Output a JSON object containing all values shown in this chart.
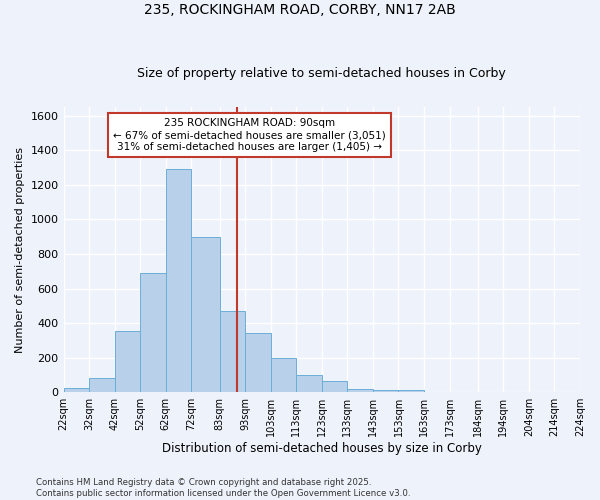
{
  "title1": "235, ROCKINGHAM ROAD, CORBY, NN17 2AB",
  "title2": "Size of property relative to semi-detached houses in Corby",
  "xlabel": "Distribution of semi-detached houses by size in Corby",
  "ylabel": "Number of semi-detached properties",
  "bin_labels": [
    "22sqm",
    "32sqm",
    "42sqm",
    "52sqm",
    "62sqm",
    "72sqm",
    "83sqm",
    "93sqm",
    "103sqm",
    "113sqm",
    "123sqm",
    "133sqm",
    "143sqm",
    "153sqm",
    "163sqm",
    "173sqm",
    "184sqm",
    "194sqm",
    "204sqm",
    "214sqm",
    "224sqm"
  ],
  "bin_edges": [
    22,
    32,
    42,
    52,
    62,
    72,
    83,
    93,
    103,
    113,
    123,
    133,
    143,
    153,
    163,
    173,
    184,
    194,
    204,
    214,
    224
  ],
  "hist_counts": [
    25,
    80,
    355,
    690,
    1290,
    900,
    470,
    345,
    200,
    100,
    65,
    20,
    15,
    10,
    0,
    0,
    0,
    0,
    0,
    0
  ],
  "bar_color": "#b8d0ea",
  "bar_edge_color": "#6aaed6",
  "vline_x": 90,
  "vline_color": "#c0392b",
  "annotation_text": "235 ROCKINGHAM ROAD: 90sqm\n← 67% of semi-detached houses are smaller (3,051)\n31% of semi-detached houses are larger (1,405) →",
  "annotation_box_color": "#ffffff",
  "annotation_border_color": "#c0392b",
  "ylim": [
    0,
    1650
  ],
  "yticks": [
    0,
    200,
    400,
    600,
    800,
    1000,
    1200,
    1400,
    1600
  ],
  "footer1": "Contains HM Land Registry data © Crown copyright and database right 2025.",
  "footer2": "Contains public sector information licensed under the Open Government Licence v3.0.",
  "bg_color": "#eef2fa",
  "grid_color": "#ffffff"
}
